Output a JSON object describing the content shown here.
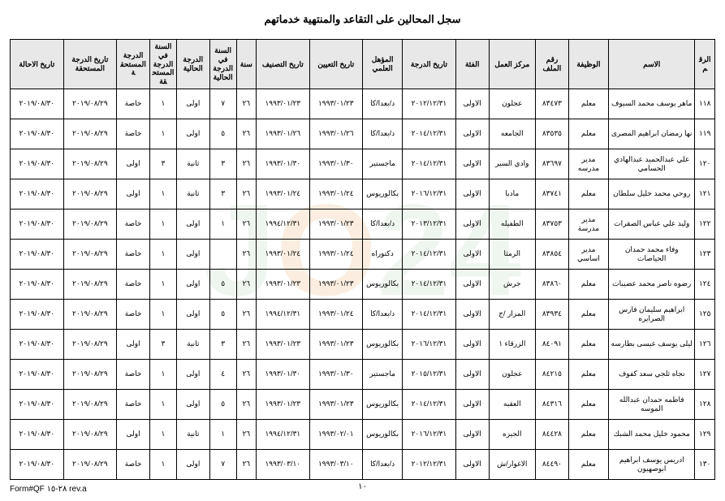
{
  "title": "سجل المحالين على التقاعد والمنتهية خدماتهم",
  "footer_form": "Form#QF ٢٨-١٥ rev.a",
  "page_number": "١٠",
  "columns": [
    "الرقم",
    "الاسم",
    "الوظيفة",
    "رقم الملف",
    "مركز العمل",
    "الفئة",
    "تاريخ الدرجة",
    "المؤهل العلمي",
    "تاريخ التعيين",
    "تاريخ التصنيف",
    "سنة",
    "السنة في الدرجة الحالية",
    "الدرجة الحالية",
    "السنة في الدرجة المستحقة",
    "الدرجة المستحقة",
    "تاريخ الدرجة المستحقة",
    "تاريخ الاحالة"
  ],
  "rows": [
    [
      "١١٨",
      "ماهر يوسف محمد السيوف",
      "معلم",
      "٨٣٤٧٣",
      "عجلون",
      "الاولى",
      "٢٠١٢/١٢/٣١",
      "د/بعدا/كا",
      "١٩٩٣/٠١/٢٣",
      "١٩٩٣/٠١/٢٣",
      "٢٦",
      "٧",
      "اولى",
      "١",
      "خاصة",
      "٢٠١٩/٠٨/٢٩",
      "٢٠١٩/٠٨/٣٠"
    ],
    [
      "١١٩",
      "نها رمضان ابراهيم المصرى",
      "معلم",
      "٨٣٥٣٥",
      "الجامعه",
      "الاولى",
      "٢٠١٤/١٢/٣١",
      "د/بعدا/كا",
      "١٩٩٣/٠١/٢٦",
      "١٩٩٣/٠١/٢٦",
      "٢٦",
      "٥",
      "اولى",
      "١",
      "خاصة",
      "٢٠١٩/٠٨/٢٩",
      "٢٠١٩/٠٨/٣٠"
    ],
    [
      "١٢٠",
      "علي عبدالحميد عبدالهادي الحسامي",
      "مدير مدرسه",
      "٨٣٦٩٧",
      "وادي السير",
      "الاولى",
      "٢٠١٤/١٢/٣١",
      "ماجستير",
      "١٩٩٣/٠١/٣٠",
      "١٩٩٣/٠١/٣٠",
      "٢٦",
      "٣",
      "ثانية",
      "٣",
      "اولى",
      "٢٠١٩/٠٨/٢٩",
      "٢٠١٩/٠٨/٣٠"
    ],
    [
      "١٢١",
      "روحي محمد خليل سلطان",
      "معلم",
      "٨٣٧٤١",
      "مادبا",
      "الاولى",
      "٢٠١٦/١٢/٣١",
      "بكالوريوس",
      "١٩٩٣/٠١/٢٤",
      "١٩٩٣/٠١/٢٤",
      "٢٦",
      "٣",
      "ثانية",
      "١",
      "اولى",
      "٢٠١٩/٠٨/٢٩",
      "٢٠١٩/٠٨/٣٠"
    ],
    [
      "١٢٢",
      "وليد علي عباس الصقرات",
      "مدير مدرسة",
      "٨٣٧٥٣",
      "الطفيله",
      "الاولى",
      "٢٠١٣/١٢/٣١",
      "د/بعدا/كا",
      "١٩٩٣/٠١/٢٣",
      "١٩٩٤/١٢/٣١",
      "٢٦",
      "١",
      "اولى",
      "١",
      "خاصة",
      "٢٠١٩/٠٨/٢٩",
      "٢٠١٩/٠٨/٣٠"
    ],
    [
      "١٢٣",
      "وفاء محمد حمدان الحياصات",
      "مدير اساسي",
      "٨٣٨٥٤",
      "الرمثا",
      "الاولى",
      "٢٠١٤/١٢/٣١",
      "دكتوراه",
      "١٩٩٣/٠١/٢٤",
      "١٩٩٣/٠١/٢٤",
      "٢٦",
      "",
      "اولى",
      "١",
      "خاصة",
      "٢٠١٩/٠٨/٢٩",
      "٢٠١٩/٠٨/٣٠"
    ],
    [
      "١٢٤",
      "رضوه ناصر محمد عضيبات",
      "معلم",
      "٨٣٨٦٠",
      "جرش",
      "الاولى",
      "٢٠١٤/١٢/٣١",
      "بكالوريوس",
      "١٩٩٣/٠١/٢٣",
      "١٩٩٣/٠١/٢٣",
      "٢٦",
      "٥",
      "اولى",
      "١",
      "خاصة",
      "٢٠١٩/٠٨/٢٩",
      "٢٠١٩/٠٨/٣٠"
    ],
    [
      "١٢٥",
      "ابراهيم سليمان فارس الصرايره",
      "معلم",
      "٨٣٩٣٤",
      "المزار /ج",
      "الاولى",
      "٢٠١٤/١٢/٣١",
      "د/بعدا/كا",
      "١٩٩٣/٠١/٢٤",
      "١٩٩٤/١٢/٣١",
      "٢٦",
      "٥",
      "اولى",
      "١",
      "خاصة",
      "٢٠١٩/٠٨/٢٩",
      "٢٠١٩/٠٨/٣٠"
    ],
    [
      "١٢٦",
      "ليلى يوسف عيسى بطارسه",
      "معلم",
      "٨٤٠٩١",
      "الزرقاء ١",
      "الاولى",
      "٢٠١٦/١٢/٣١",
      "بكالوريوس",
      "١٩٩٣/٠١/٢٣",
      "١٩٩٣/٠١/٢٣",
      "٢٦",
      "٣",
      "ثانية",
      "٣",
      "اولى",
      "٢٠١٩/٠٨/٢٩",
      "٢٠١٩/٠٨/٣٠"
    ],
    [
      "١٢٧",
      "نجاه ثلجي سعد كفوف",
      "معلم",
      "٨٤٢١٥",
      "عجلون",
      "الاولى",
      "٢٠١٥/١٢/٣١",
      "ماجستير",
      "١٩٩٣/٠١/٣٠",
      "١٩٩٣/٠١/٣٠",
      "٢٦",
      "٤",
      "اولى",
      "١",
      "خاصة",
      "٢٠١٩/٠٨/٢٩",
      "٢٠١٩/٠٨/٣٠"
    ],
    [
      "١٢٨",
      "فاطمه حمدان عبدالله الموسه",
      "معلم",
      "٨٤٣١٦",
      "العقبه",
      "الاولى",
      "٢٠١٤/١٢/٣١",
      "بكالوريوس",
      "١٩٩٣/٠١/٢٣",
      "١٩٩٣/٠١/٢٣",
      "٢٦",
      "٥",
      "اولى",
      "١",
      "خاصة",
      "٢٠١٩/٠٨/٢٩",
      "٢٠١٩/٠٨/٣٠"
    ],
    [
      "١٢٩",
      "محمود خليل محمد الشبك",
      "معلم",
      "٨٤٤٢٨",
      "الجيزه",
      "الاولى",
      "٢٠١٦/١٢/٣١",
      "بكالوريوس",
      "١٩٩٣/٠٢/٠١",
      "١٩٩٤/١٢/٣١",
      "٢٦",
      "١",
      "ثانية",
      "١",
      "اولى",
      "٢٠١٩/٠٨/٢٩",
      "٢٠١٩/٠٨/٣٠"
    ],
    [
      "١٣٠",
      "ادريس يوسف ابراهيم ابوصهيون",
      "معلم",
      "٨٤٤٩٠",
      "الاغوار/ش",
      "الاولى",
      "٢٠١٢/١٢/٣١",
      "د/بعدا/كا",
      "١٩٩٣/٠٣/١٠",
      "١٩٩٣/٠٣/١٠",
      "٢٦",
      "٧",
      "اولى",
      "١",
      "خاصة",
      "٢٠١٩/٠٨/٢٩",
      "٢٠١٩/٠٨/٣٠"
    ]
  ]
}
